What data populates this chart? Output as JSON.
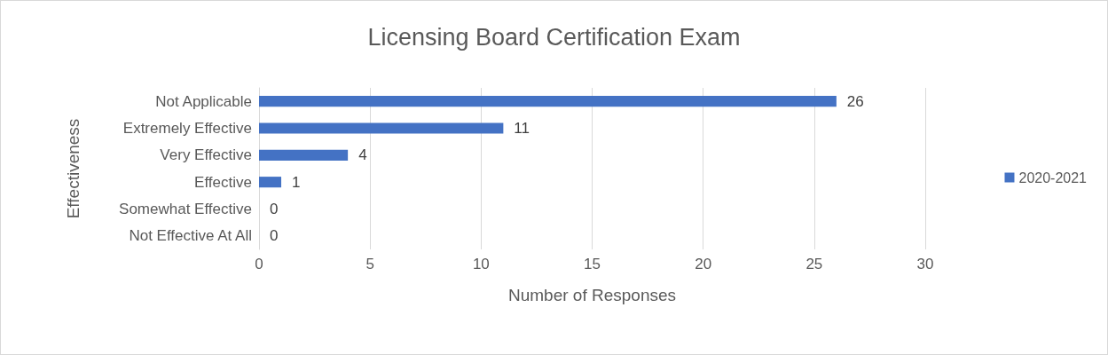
{
  "chart_data": {
    "type": "bar",
    "orientation": "horizontal",
    "title": "Licensing Board Certification Exam",
    "xlabel": "Number of Responses",
    "ylabel": "Effectiveness",
    "categories": [
      "Not Applicable",
      "Extremely Effective",
      "Very Effective",
      "Effective",
      "Somewhat Effective",
      "Not Effective At All"
    ],
    "series": [
      {
        "name": "2020-2021",
        "color": "#4472c4",
        "values": [
          26,
          11,
          4,
          1,
          0,
          0
        ]
      }
    ],
    "xlim": [
      0,
      30
    ],
    "xticks": [
      0,
      5,
      10,
      15,
      20,
      25,
      30
    ],
    "grid": "x",
    "legend": "right",
    "data_labels": true
  }
}
